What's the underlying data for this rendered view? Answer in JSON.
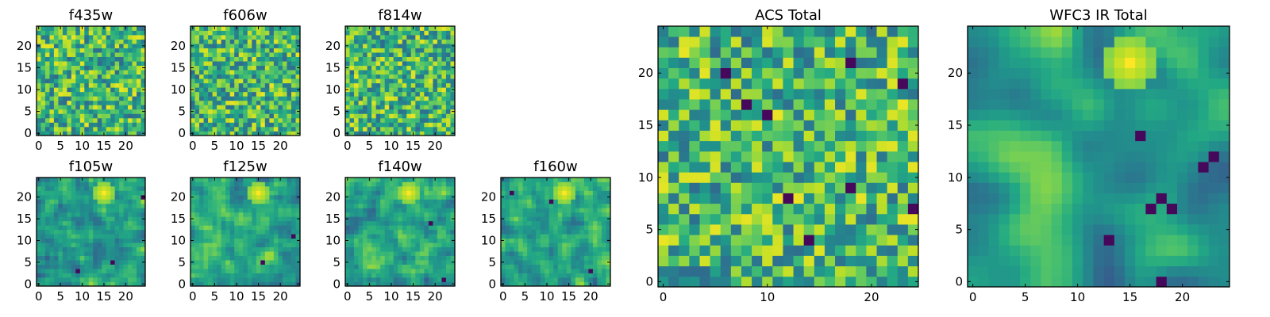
{
  "figure": {
    "background": "#ffffff"
  },
  "chart_data": [
    {
      "type": "heatmap",
      "title": "f435w",
      "grid_size": 25,
      "xticks": [
        0,
        5,
        10,
        15,
        20
      ],
      "yticks": [
        0,
        5,
        10,
        15,
        20
      ],
      "colormap": "viridis",
      "seed": 11,
      "hotspot": null,
      "dark_spots": []
    },
    {
      "type": "heatmap",
      "title": "f606w",
      "grid_size": 25,
      "xticks": [
        0,
        5,
        10,
        15,
        20
      ],
      "yticks": [
        0,
        5,
        10,
        15,
        20
      ],
      "colormap": "viridis",
      "seed": 23,
      "hotspot": null,
      "dark_spots": []
    },
    {
      "type": "heatmap",
      "title": "f814w",
      "grid_size": 25,
      "xticks": [
        0,
        5,
        10,
        15,
        20
      ],
      "yticks": [
        0,
        5,
        10,
        15,
        20
      ],
      "colormap": "viridis",
      "seed": 37,
      "hotspot": null,
      "dark_spots": []
    },
    {
      "type": "heatmap",
      "title": "f105w",
      "grid_size": 25,
      "xticks": [
        0,
        5,
        10,
        15,
        20
      ],
      "yticks": [
        0,
        5,
        10,
        15,
        20
      ],
      "colormap": "viridis",
      "seed": 41,
      "hotspot": [
        15,
        21
      ],
      "dark_spots": [
        [
          17,
          5
        ],
        [
          9,
          3
        ],
        [
          24,
          20
        ]
      ]
    },
    {
      "type": "heatmap",
      "title": "f125w",
      "grid_size": 25,
      "xticks": [
        0,
        5,
        10,
        15,
        20
      ],
      "yticks": [
        0,
        5,
        10,
        15,
        20
      ],
      "colormap": "viridis",
      "seed": 53,
      "hotspot": [
        15,
        21
      ],
      "dark_spots": [
        [
          16,
          5
        ],
        [
          23,
          11
        ]
      ]
    },
    {
      "type": "heatmap",
      "title": "f140w",
      "grid_size": 25,
      "xticks": [
        0,
        5,
        10,
        15,
        20
      ],
      "yticks": [
        0,
        5,
        10,
        15,
        20
      ],
      "colormap": "viridis",
      "seed": 67,
      "hotspot": [
        14,
        21
      ],
      "dark_spots": [
        [
          22,
          1
        ],
        [
          19,
          14
        ]
      ]
    },
    {
      "type": "heatmap",
      "title": "f160w",
      "grid_size": 25,
      "xticks": [
        0,
        5,
        10,
        15,
        20
      ],
      "yticks": [
        0,
        5,
        10,
        15,
        20
      ],
      "colormap": "viridis",
      "seed": 79,
      "hotspot": [
        14,
        21
      ],
      "dark_spots": [
        [
          2,
          21
        ],
        [
          11,
          19
        ],
        [
          20,
          3
        ]
      ]
    },
    {
      "type": "heatmap",
      "title": "ACS Total",
      "grid_size": 25,
      "xticks": [
        0,
        10,
        20
      ],
      "yticks": [
        0,
        5,
        10,
        15,
        20
      ],
      "colormap": "viridis",
      "seed": 97,
      "hotspot": null,
      "dark_spots": [
        [
          6,
          20
        ],
        [
          18,
          21
        ],
        [
          23,
          19
        ],
        [
          8,
          17
        ],
        [
          10,
          16
        ],
        [
          18,
          9
        ],
        [
          14,
          4
        ],
        [
          12,
          8
        ],
        [
          24,
          7
        ]
      ]
    },
    {
      "type": "heatmap",
      "title": "WFC3 IR Total",
      "grid_size": 25,
      "xticks": [
        0,
        5,
        10,
        15,
        20
      ],
      "yticks": [
        0,
        5,
        10,
        15,
        20
      ],
      "colormap": "viridis",
      "seed": 101,
      "hotspot": [
        15,
        21
      ],
      "dark_spots": [
        [
          18,
          8
        ],
        [
          19,
          7
        ],
        [
          17,
          7
        ],
        [
          18,
          0
        ],
        [
          16,
          14
        ],
        [
          22,
          11
        ],
        [
          23,
          12
        ],
        [
          13,
          4
        ]
      ]
    }
  ]
}
